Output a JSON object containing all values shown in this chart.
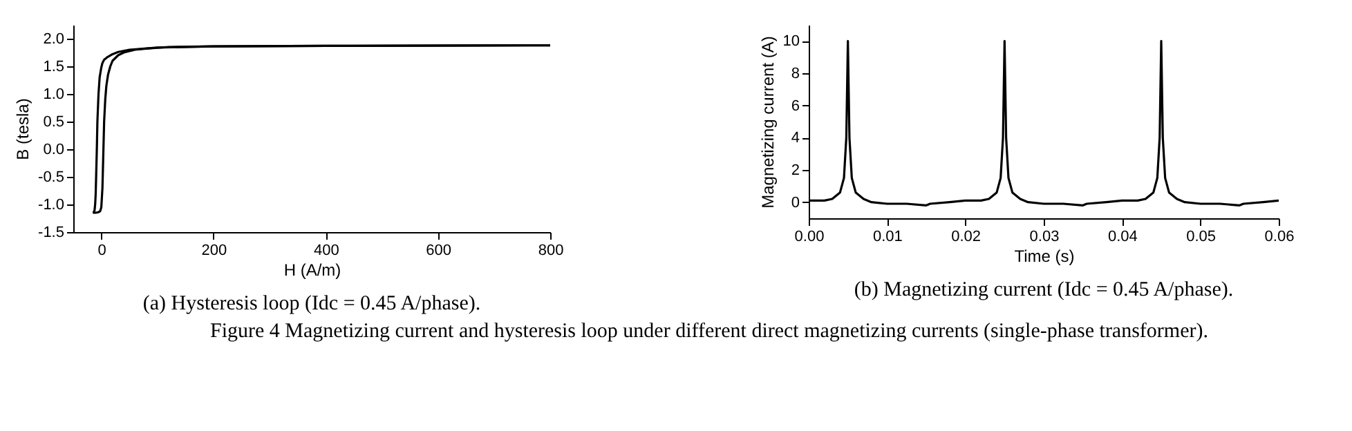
{
  "chart_data": [
    {
      "type": "line",
      "xlabel": "H (A/m)",
      "ylabel": "B (tesla)",
      "xlim": [
        -50,
        800
      ],
      "ylim": [
        -1.5,
        2.25
      ],
      "xticks": [
        0,
        200,
        400,
        600,
        800
      ],
      "yticks": [
        {
          "value": -1.5,
          "label": "-1.5"
        },
        {
          "value": -1.0,
          "label": "-1.0"
        },
        {
          "value": -0.5,
          "label": "-0.5"
        },
        {
          "value": 0.0,
          "label": "0.0"
        },
        {
          "value": 0.5,
          "label": "0.5"
        },
        {
          "value": 1.0,
          "label": "1.0"
        },
        {
          "value": 1.5,
          "label": "1.5"
        },
        {
          "value": 2.0,
          "label": "2.0"
        }
      ],
      "grid": false,
      "series": [
        {
          "color": "#000000",
          "x": [
            -15,
            -13,
            -12,
            -11,
            -10,
            -9,
            -8,
            -7,
            -5,
            -3,
            0,
            2,
            5,
            10,
            20,
            30,
            50,
            100,
            200,
            400,
            800
          ],
          "values": [
            -1.15,
            -1.14,
            -1.1,
            -1.0,
            -0.8,
            -0.4,
            0.0,
            0.5,
            1.0,
            1.3,
            1.48,
            1.56,
            1.62,
            1.66,
            1.72,
            1.76,
            1.8,
            1.84,
            1.86,
            1.87,
            1.88
          ]
        },
        {
          "color": "#000000",
          "x": [
            -15,
            -10,
            -5,
            -2,
            0,
            2,
            3,
            4,
            5,
            7,
            9,
            12,
            16,
            20,
            30,
            40,
            60,
            80,
            120,
            200,
            400,
            800
          ],
          "values": [
            -1.15,
            -1.15,
            -1.14,
            -1.12,
            -1.05,
            -0.7,
            -0.3,
            0.1,
            0.5,
            0.9,
            1.15,
            1.35,
            1.5,
            1.6,
            1.7,
            1.75,
            1.8,
            1.82,
            1.85,
            1.86,
            1.87,
            1.88
          ]
        }
      ],
      "annotations": [
        "(a) Hysteresis loop (Idc = 0.45 A/phase)."
      ]
    },
    {
      "type": "line",
      "xlabel": "Time (s)",
      "ylabel": "Magnetizing current (A)",
      "xlim": [
        0,
        0.06
      ],
      "ylim": [
        -1,
        11
      ],
      "xticks": [
        {
          "value": 0.0,
          "label": "0.00"
        },
        {
          "value": 0.01,
          "label": "0.01"
        },
        {
          "value": 0.02,
          "label": "0.02"
        },
        {
          "value": 0.03,
          "label": "0.03"
        },
        {
          "value": 0.04,
          "label": "0.04"
        },
        {
          "value": 0.05,
          "label": "0.05"
        },
        {
          "value": 0.06,
          "label": "0.06"
        }
      ],
      "yticks": [
        0,
        2,
        4,
        6,
        8,
        10
      ],
      "grid": false,
      "series": [
        {
          "color": "#000000",
          "x": [
            0,
            0.002,
            0.003,
            0.004,
            0.0045,
            0.0048,
            0.005,
            0.0052,
            0.0055,
            0.006,
            0.007,
            0.008,
            0.01,
            0.0125,
            0.015,
            0.0155,
            0.018,
            0.02,
            0.022,
            0.023,
            0.024,
            0.0245,
            0.0248,
            0.025,
            0.0252,
            0.0255,
            0.026,
            0.027,
            0.028,
            0.03,
            0.0325,
            0.035,
            0.0355,
            0.038,
            0.04,
            0.042,
            0.043,
            0.044,
            0.0445,
            0.0448,
            0.045,
            0.0452,
            0.0455,
            0.046,
            0.047,
            0.048,
            0.05,
            0.0525,
            0.055,
            0.0555,
            0.058,
            0.06
          ],
          "values": [
            0.1,
            0.1,
            0.2,
            0.6,
            1.5,
            4,
            10,
            4,
            1.5,
            0.6,
            0.2,
            0.0,
            -0.1,
            -0.1,
            -0.2,
            -0.1,
            0.0,
            0.1,
            0.1,
            0.2,
            0.6,
            1.5,
            4,
            10,
            4,
            1.5,
            0.6,
            0.2,
            0.0,
            -0.1,
            -0.1,
            -0.2,
            -0.1,
            0.0,
            0.1,
            0.1,
            0.2,
            0.6,
            1.5,
            4,
            10,
            4,
            1.5,
            0.6,
            0.2,
            0.0,
            -0.1,
            -0.1,
            -0.2,
            -0.1,
            0.0,
            0.1
          ]
        }
      ],
      "annotations": [
        "(b) Magnetizing current (Idc = 0.45 A/phase).",
        "Figure 4   Magnetizing current and hysteresis loop under different direct magnetizing currents (single-phase transformer)."
      ]
    }
  ]
}
